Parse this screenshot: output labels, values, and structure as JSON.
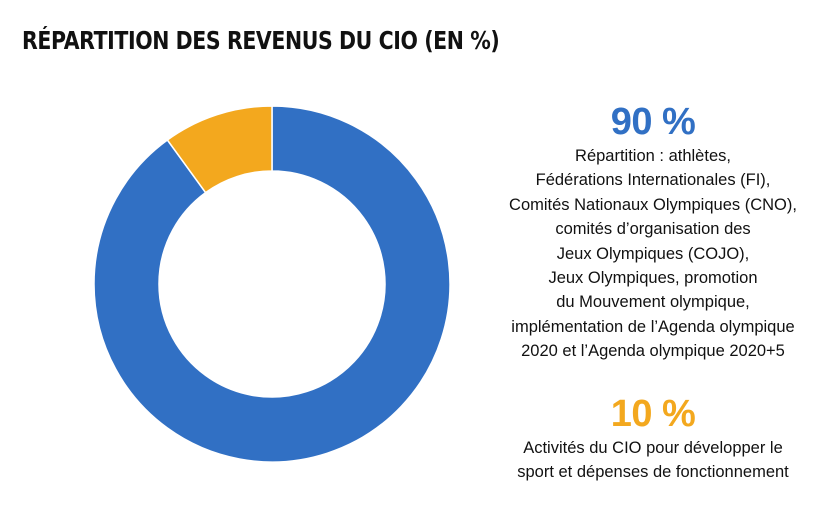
{
  "title": "RÉPARTITION DES REVENUS DU CIO (EN %)",
  "colors": {
    "blue": "#3170C4",
    "orange": "#F3A81E",
    "text": "#111111"
  },
  "legend": [
    {
      "percent": "90 %",
      "lines": [
        "Répartition : athlètes,",
        "Fédérations Internationales (FI),",
        "Comités Nationaux Olympiques (CNO),",
        "comités d’organisation des",
        "Jeux Olympiques (COJO),",
        "Jeux Olympiques, promotion",
        "du Mouvement olympique,",
        "implémentation de l’Agenda olympique",
        "2020 et l’Agenda olympique 2020+5"
      ]
    },
    {
      "percent": "10 %",
      "lines": [
        "Activités du CIO pour développer le",
        "sport et dépenses de fonctionnement"
      ]
    }
  ],
  "chart_data": {
    "type": "pie",
    "donut": true,
    "title": "RÉPARTITION DES REVENUS DU CIO (EN %)",
    "categories": [
      "Répartition : athlètes, FI, CNO, COJO, Jeux Olympiques, promotion du Mouvement olympique, Agenda olympique 2020 et Agenda olympique 2020+5",
      "Activités du CIO pour développer le sport et dépenses de fonctionnement"
    ],
    "values": [
      90,
      10
    ],
    "colors": [
      "#3170C4",
      "#F3A81E"
    ],
    "legend_placement": "right"
  }
}
